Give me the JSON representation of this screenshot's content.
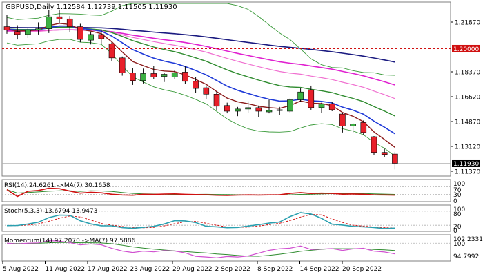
{
  "colors": {
    "bull_candle": "#3cb043",
    "bear_candle": "#e8202a",
    "price_ma": "#8b1a1a",
    "fast_ma": "#1f3ad8",
    "mid_ma": "#2e8b2e",
    "slow_ma": "#e020d0",
    "long_ma": "#1a1a80",
    "bands": "#3a9a3a",
    "pink_ma": "#f070d0",
    "level_line": "#d01010",
    "rsi_line": "#d01010",
    "rsi_ma": "#2e8b2e",
    "stoch_main": "#2aa0b0",
    "stoch_signal": "#d01010",
    "momentum_main": "#d050d0",
    "momentum_ma": "#2e8b2e"
  },
  "main_panel": {
    "title": "GBPUSD,Daily  1.12584  1.12739  1.11505  1.11930",
    "level_label": "1.20000",
    "current_price_label": "1.11930",
    "price_ticks": [
      "1.21870",
      "1.20000",
      "1.18370",
      "1.16620",
      "1.14870",
      "1.13120",
      "1.11930",
      "1.11370"
    ]
  },
  "rsi_panel": {
    "title": "RSI(14) 24.6261  ->MA(7) 30.1658",
    "ticks": [
      "100",
      "70",
      "30",
      "0"
    ]
  },
  "stoch_panel": {
    "title": "Stoch(5,3,3) 13.6794 13.9473",
    "ticks": [
      "100",
      "80",
      "20",
      "0"
    ]
  },
  "momentum_panel": {
    "title": "Momentum(14) 97.2070  ->MA(7) 97.5886",
    "ticks": [
      "102.2331",
      "100",
      "94.7992"
    ]
  },
  "date_axis": [
    "5 Aug 2022",
    "11 Aug 2022",
    "17 Aug 2022",
    "23 Aug 2022",
    "29 Aug 2022",
    "2 Sep 2022",
    "8 Sep 2022",
    "14 Sep 2022",
    "20 Sep 2022"
  ],
  "chart_data": {
    "type": "candlestick",
    "symbol": "GBPUSD",
    "timeframe": "Daily",
    "ylim": [
      1.1137,
      1.2187
    ],
    "horizontal_level": 1.2,
    "candles": [
      {
        "o": 1.2155,
        "h": 1.224,
        "l": 1.2105,
        "c": 1.213
      },
      {
        "o": 1.212,
        "h": 1.2165,
        "l": 1.2065,
        "c": 1.21
      },
      {
        "o": 1.21,
        "h": 1.2145,
        "l": 1.2075,
        "c": 1.213
      },
      {
        "o": 1.213,
        "h": 1.2185,
        "l": 1.21,
        "c": 1.214
      },
      {
        "o": 1.214,
        "h": 1.227,
        "l": 1.211,
        "c": 1.2225
      },
      {
        "o": 1.2225,
        "h": 1.2275,
        "l": 1.218,
        "c": 1.221
      },
      {
        "o": 1.221,
        "h": 1.223,
        "l": 1.2115,
        "c": 1.2155
      },
      {
        "o": 1.2155,
        "h": 1.2175,
        "l": 1.2045,
        "c": 1.2065
      },
      {
        "o": 1.206,
        "h": 1.212,
        "l": 1.203,
        "c": 1.21
      },
      {
        "o": 1.21,
        "h": 1.2135,
        "l": 1.2035,
        "c": 1.207
      },
      {
        "o": 1.2035,
        "h": 1.2045,
        "l": 1.191,
        "c": 1.1935
      },
      {
        "o": 1.1935,
        "h": 1.1945,
        "l": 1.181,
        "c": 1.183
      },
      {
        "o": 1.183,
        "h": 1.1865,
        "l": 1.1745,
        "c": 1.1775
      },
      {
        "o": 1.1775,
        "h": 1.186,
        "l": 1.1755,
        "c": 1.1825
      },
      {
        "o": 1.1825,
        "h": 1.188,
        "l": 1.1785,
        "c": 1.18
      },
      {
        "o": 1.1805,
        "h": 1.183,
        "l": 1.1765,
        "c": 1.182
      },
      {
        "o": 1.18,
        "h": 1.185,
        "l": 1.1785,
        "c": 1.183
      },
      {
        "o": 1.1835,
        "h": 1.1875,
        "l": 1.175,
        "c": 1.177
      },
      {
        "o": 1.177,
        "h": 1.18,
        "l": 1.169,
        "c": 1.172
      },
      {
        "o": 1.1725,
        "h": 1.174,
        "l": 1.1645,
        "c": 1.168
      },
      {
        "o": 1.168,
        "h": 1.17,
        "l": 1.1565,
        "c": 1.1595
      },
      {
        "o": 1.16,
        "h": 1.162,
        "l": 1.1545,
        "c": 1.156
      },
      {
        "o": 1.156,
        "h": 1.159,
        "l": 1.1525,
        "c": 1.1575
      },
      {
        "o": 1.1575,
        "h": 1.163,
        "l": 1.1545,
        "c": 1.1585
      },
      {
        "o": 1.1585,
        "h": 1.16,
        "l": 1.152,
        "c": 1.156
      },
      {
        "o": 1.1555,
        "h": 1.164,
        "l": 1.1545,
        "c": 1.1565
      },
      {
        "o": 1.1565,
        "h": 1.159,
        "l": 1.1535,
        "c": 1.157
      },
      {
        "o": 1.156,
        "h": 1.165,
        "l": 1.1545,
        "c": 1.164
      },
      {
        "o": 1.164,
        "h": 1.172,
        "l": 1.1625,
        "c": 1.1695
      },
      {
        "o": 1.171,
        "h": 1.174,
        "l": 1.157,
        "c": 1.1585
      },
      {
        "o": 1.1585,
        "h": 1.162,
        "l": 1.155,
        "c": 1.161
      },
      {
        "o": 1.161,
        "h": 1.1625,
        "l": 1.156,
        "c": 1.157
      },
      {
        "o": 1.154,
        "h": 1.155,
        "l": 1.141,
        "c": 1.1455
      },
      {
        "o": 1.1455,
        "h": 1.1475,
        "l": 1.1405,
        "c": 1.147
      },
      {
        "o": 1.148,
        "h": 1.1495,
        "l": 1.1395,
        "c": 1.141
      },
      {
        "o": 1.138,
        "h": 1.1385,
        "l": 1.125,
        "c": 1.127
      },
      {
        "o": 1.127,
        "h": 1.1295,
        "l": 1.1235,
        "c": 1.1255
      },
      {
        "o": 1.1258,
        "h": 1.1274,
        "l": 1.115,
        "c": 1.1193
      }
    ]
  }
}
